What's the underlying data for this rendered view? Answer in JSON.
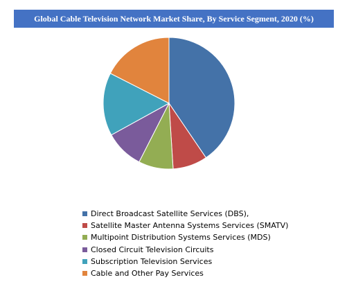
{
  "chart_data": {
    "type": "pie",
    "title": "Global Cable Television Network Market Share, By Service Segment, 2020 (%)",
    "categories": [
      "Direct Broadcast Satellite Services (DBS),",
      "Satellite Master Antenna Systems Services (SMATV)",
      "Multipoint Distribution Systems Services (MDS)",
      "Closed Circuit Television Circuits",
      "Subscription Television Services",
      "Cable and Other Pay Services"
    ],
    "values": [
      40.5,
      8.5,
      8.5,
      9.5,
      15.5,
      17.5
    ],
    "colors": [
      "#4472a8",
      "#bf4b48",
      "#93ad53",
      "#7a5b9b",
      "#40a2bb",
      "#e1843d"
    ],
    "legend_position": "bottom"
  }
}
